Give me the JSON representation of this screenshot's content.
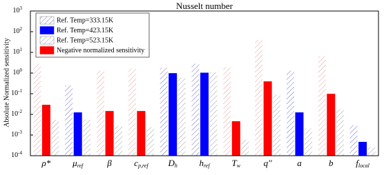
{
  "chart_data": {
    "type": "bar",
    "title": "Nusselt number",
    "y_label": "Absolute Normalized sensitivity",
    "categories": [
      "ρ*",
      "μ",
      "β",
      "c",
      "D",
      "h",
      "T",
      "q''",
      "a",
      "b",
      "f"
    ],
    "category_subscripts": [
      null,
      "ref",
      null,
      "p,ref",
      "h",
      "ref",
      "w",
      null,
      null,
      null,
      "local"
    ],
    "log_scale": true,
    "ylim": [
      0.0001,
      1000
    ],
    "yticks": [
      {
        "value": 0.0001,
        "label": "10",
        "exponent": "-4"
      },
      {
        "value": 0.001,
        "label": "10",
        "exponent": "-3"
      },
      {
        "value": 0.01,
        "label": "10",
        "exponent": "-2"
      },
      {
        "value": 0.1,
        "label": "10",
        "exponent": "-1"
      },
      {
        "value": 1,
        "label": "10",
        "exponent": "0"
      },
      {
        "value": 10,
        "label": "10",
        "exponent": "1"
      },
      {
        "value": 100,
        "label": "10",
        "exponent": "2"
      },
      {
        "value": 1000,
        "label": "10",
        "exponent": "3"
      }
    ],
    "series": [
      {
        "name": "Ref. Temp=333.15K",
        "hatch": true,
        "color": "#6a6ac8",
        "values": [
          2.8,
          0.25,
          1.3,
          1.7,
          1.8,
          2.8,
          1.9,
          40,
          1.3,
          6.5,
          0.003
        ],
        "colors": [
          "#e89a9a",
          "#6a6ac8",
          "#e89a9a",
          "#e89a9a",
          "#6a6ac8",
          "#6a6ac8",
          "#e89a9a",
          "#e89a9a",
          "#6a6ac8",
          "#e89a9a",
          "#6a6ac8"
        ]
      },
      {
        "name": "Ref. Temp=423.15K",
        "hatch": false,
        "color": "#0000ff",
        "values": [
          0.028,
          0.012,
          0.014,
          0.014,
          0.95,
          1.0,
          0.0045,
          0.38,
          0.012,
          0.095,
          0.00045
        ],
        "colors": [
          "#ff0000",
          "#0000ff",
          "#ff0000",
          "#ff0000",
          "#0000ff",
          "#0000ff",
          "#ff0000",
          "#ff0000",
          "#0000ff",
          "#ff0000",
          "#0000ff"
        ]
      },
      {
        "name": "Ref. Temp=523.15K",
        "hatch": true,
        "color": "#a0a0a0",
        "values": [
          0.0055,
          0.0055,
          0.0028,
          0.0024,
          0.6,
          1.1,
          0.0006,
          0.09,
          0.0021,
          0.018,
          0.00026
        ],
        "colors": [
          "#a0a0a0",
          "#a0a0a0",
          "#a0a0a0",
          "#a0a0a0",
          "#a0a0a0",
          "#a0a0a0",
          "#a0a0a0",
          "#a0a0a0",
          "#a0a0a0",
          "#a0a0a0",
          "#a0a0a0"
        ]
      }
    ],
    "negative_legend": {
      "name": "Negative normalized sensitivity",
      "color": "#ff0000"
    }
  }
}
